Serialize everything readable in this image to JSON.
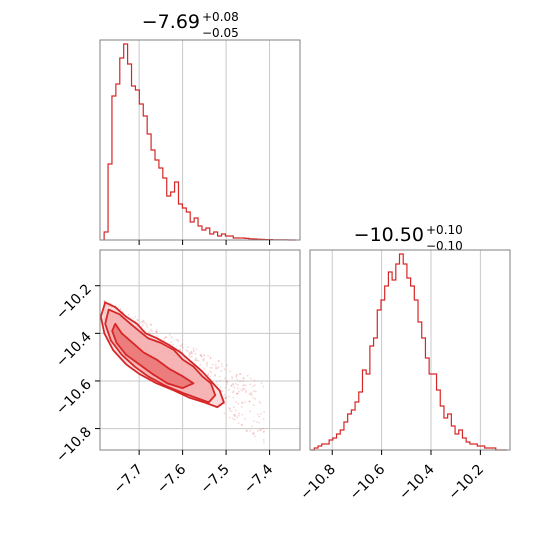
{
  "colors": {
    "series": "#d62728",
    "grid": "#c8c8c8",
    "frame": "#808080"
  },
  "chart_data": [
    {
      "type": "histogram",
      "panel": "top-left",
      "title": {
        "main": "−7.69",
        "upper": "+0.08",
        "lower": "−0.05"
      },
      "xlim": [
        -7.79,
        -7.33
      ],
      "xticks": [
        -7.7,
        -7.6,
        -7.5,
        -7.4
      ],
      "ylim": [
        0,
        1.0
      ],
      "grid": true,
      "bins": [
        {
          "x": -7.776,
          "v": 0.04
        },
        {
          "x": -7.767,
          "v": 0.38
        },
        {
          "x": -7.758,
          "v": 0.72
        },
        {
          "x": -7.749,
          "v": 0.78
        },
        {
          "x": -7.74,
          "v": 0.91
        },
        {
          "x": -7.731,
          "v": 0.98
        },
        {
          "x": -7.722,
          "v": 0.88
        },
        {
          "x": -7.713,
          "v": 0.77
        },
        {
          "x": -7.704,
          "v": 0.75
        },
        {
          "x": -7.695,
          "v": 0.68
        },
        {
          "x": -7.686,
          "v": 0.62
        },
        {
          "x": -7.677,
          "v": 0.53
        },
        {
          "x": -7.668,
          "v": 0.45
        },
        {
          "x": -7.659,
          "v": 0.4
        },
        {
          "x": -7.65,
          "v": 0.36
        },
        {
          "x": -7.641,
          "v": 0.31
        },
        {
          "x": -7.632,
          "v": 0.22
        },
        {
          "x": -7.623,
          "v": 0.24
        },
        {
          "x": -7.614,
          "v": 0.29
        },
        {
          "x": -7.605,
          "v": 0.18
        },
        {
          "x": -7.596,
          "v": 0.16
        },
        {
          "x": -7.587,
          "v": 0.14
        },
        {
          "x": -7.578,
          "v": 0.09
        },
        {
          "x": -7.569,
          "v": 0.11
        },
        {
          "x": -7.56,
          "v": 0.07
        },
        {
          "x": -7.551,
          "v": 0.05
        },
        {
          "x": -7.542,
          "v": 0.06
        },
        {
          "x": -7.533,
          "v": 0.03
        },
        {
          "x": -7.524,
          "v": 0.04
        },
        {
          "x": -7.515,
          "v": 0.02
        },
        {
          "x": -7.506,
          "v": 0.03
        },
        {
          "x": -7.497,
          "v": 0.02
        },
        {
          "x": -7.488,
          "v": 0.02
        },
        {
          "x": -7.479,
          "v": 0.01
        },
        {
          "x": -7.47,
          "v": 0.01
        },
        {
          "x": -7.461,
          "v": 0.01
        },
        {
          "x": -7.452,
          "v": 0.008
        },
        {
          "x": -7.443,
          "v": 0.006
        },
        {
          "x": -7.434,
          "v": 0.005
        },
        {
          "x": -7.425,
          "v": 0.004
        },
        {
          "x": -7.416,
          "v": 0.003
        },
        {
          "x": -7.407,
          "v": 0.002
        },
        {
          "x": -7.398,
          "v": 0.002
        },
        {
          "x": -7.389,
          "v": 0.001
        },
        {
          "x": -7.38,
          "v": 0.001
        },
        {
          "x": -7.371,
          "v": 0.001
        },
        {
          "x": -7.362,
          "v": 0.001
        },
        {
          "x": -7.353,
          "v": 0.0
        },
        {
          "x": -7.344,
          "v": 0.0
        }
      ]
    },
    {
      "type": "scatter",
      "panel": "bottom-left",
      "subtype": "2d-density-contour",
      "xlim": [
        -7.79,
        -7.33
      ],
      "ylim": [
        -10.89,
        -10.05
      ],
      "xticks": [
        -7.7,
        -7.6,
        -7.5,
        -7.4
      ],
      "yticks": [
        -10.2,
        -10.4,
        -10.6,
        -10.8
      ],
      "grid": true,
      "contours": [
        [
          [
            -7.755,
            -10.36
          ],
          [
            -7.74,
            -10.4
          ],
          [
            -7.715,
            -10.44
          ],
          [
            -7.69,
            -10.48
          ],
          [
            -7.66,
            -10.51
          ],
          [
            -7.63,
            -10.55
          ],
          [
            -7.6,
            -10.58
          ],
          [
            -7.575,
            -10.61
          ],
          [
            -7.6,
            -10.63
          ],
          [
            -7.635,
            -10.61
          ],
          [
            -7.67,
            -10.57
          ],
          [
            -7.7,
            -10.53
          ],
          [
            -7.73,
            -10.49
          ],
          [
            -7.752,
            -10.44
          ],
          [
            -7.762,
            -10.39
          ]
        ],
        [
          [
            -7.77,
            -10.3
          ],
          [
            -7.745,
            -10.32
          ],
          [
            -7.72,
            -10.36
          ],
          [
            -7.7,
            -10.39
          ],
          [
            -7.68,
            -10.42
          ],
          [
            -7.65,
            -10.44
          ],
          [
            -7.62,
            -10.47
          ],
          [
            -7.6,
            -10.51
          ],
          [
            -7.575,
            -10.54
          ],
          [
            -7.555,
            -10.58
          ],
          [
            -7.535,
            -10.61
          ],
          [
            -7.525,
            -10.66
          ],
          [
            -7.54,
            -10.69
          ],
          [
            -7.57,
            -10.67
          ],
          [
            -7.6,
            -10.65
          ],
          [
            -7.64,
            -10.62
          ],
          [
            -7.68,
            -10.58
          ],
          [
            -7.71,
            -10.54
          ],
          [
            -7.74,
            -10.49
          ],
          [
            -7.765,
            -10.43
          ],
          [
            -7.778,
            -10.36
          ]
        ],
        [
          [
            -7.778,
            -10.27
          ],
          [
            -7.755,
            -10.29
          ],
          [
            -7.73,
            -10.33
          ],
          [
            -7.705,
            -10.36
          ],
          [
            -7.685,
            -10.4
          ],
          [
            -7.66,
            -10.42
          ],
          [
            -7.63,
            -10.45
          ],
          [
            -7.605,
            -10.48
          ],
          [
            -7.58,
            -10.52
          ],
          [
            -7.555,
            -10.56
          ],
          [
            -7.535,
            -10.6
          ],
          [
            -7.515,
            -10.64
          ],
          [
            -7.505,
            -10.69
          ],
          [
            -7.52,
            -10.71
          ],
          [
            -7.55,
            -10.69
          ],
          [
            -7.585,
            -10.67
          ],
          [
            -7.62,
            -10.64
          ],
          [
            -7.66,
            -10.61
          ],
          [
            -7.7,
            -10.57
          ],
          [
            -7.73,
            -10.53
          ],
          [
            -7.76,
            -10.47
          ],
          [
            -7.78,
            -10.4
          ],
          [
            -7.788,
            -10.33
          ]
        ]
      ],
      "point_density_range": {
        "x": [
          -7.79,
          -7.4
        ],
        "y": [
          -10.8,
          -10.05
        ]
      }
    },
    {
      "type": "histogram",
      "panel": "bottom-right",
      "title": {
        "main": "−10.50",
        "upper": "+0.10",
        "lower": "−0.10"
      },
      "xlim": [
        -10.89,
        -10.08
      ],
      "xticks": [
        -10.8,
        -10.6,
        -10.4,
        -10.2
      ],
      "ylim": [
        0,
        1.0
      ],
      "grid": true,
      "bins": [
        {
          "x": -10.88,
          "v": 0.0
        },
        {
          "x": -10.865,
          "v": 0.01
        },
        {
          "x": -10.85,
          "v": 0.02
        },
        {
          "x": -10.835,
          "v": 0.03
        },
        {
          "x": -10.82,
          "v": 0.03
        },
        {
          "x": -10.805,
          "v": 0.05
        },
        {
          "x": -10.79,
          "v": 0.06
        },
        {
          "x": -10.775,
          "v": 0.08
        },
        {
          "x": -10.76,
          "v": 0.1
        },
        {
          "x": -10.745,
          "v": 0.14
        },
        {
          "x": -10.73,
          "v": 0.18
        },
        {
          "x": -10.715,
          "v": 0.2
        },
        {
          "x": -10.7,
          "v": 0.24
        },
        {
          "x": -10.685,
          "v": 0.29
        },
        {
          "x": -10.67,
          "v": 0.4
        },
        {
          "x": -10.655,
          "v": 0.38
        },
        {
          "x": -10.64,
          "v": 0.52
        },
        {
          "x": -10.625,
          "v": 0.56
        },
        {
          "x": -10.61,
          "v": 0.7
        },
        {
          "x": -10.595,
          "v": 0.75
        },
        {
          "x": -10.58,
          "v": 0.82
        },
        {
          "x": -10.565,
          "v": 0.89
        },
        {
          "x": -10.55,
          "v": 0.85
        },
        {
          "x": -10.535,
          "v": 0.93
        },
        {
          "x": -10.52,
          "v": 0.98
        },
        {
          "x": -10.505,
          "v": 0.93
        },
        {
          "x": -10.49,
          "v": 0.86
        },
        {
          "x": -10.475,
          "v": 0.82
        },
        {
          "x": -10.46,
          "v": 0.75
        },
        {
          "x": -10.445,
          "v": 0.64
        },
        {
          "x": -10.43,
          "v": 0.56
        },
        {
          "x": -10.415,
          "v": 0.46
        },
        {
          "x": -10.4,
          "v": 0.38
        },
        {
          "x": -10.385,
          "v": 0.38
        },
        {
          "x": -10.37,
          "v": 0.3
        },
        {
          "x": -10.355,
          "v": 0.22
        },
        {
          "x": -10.34,
          "v": 0.16
        },
        {
          "x": -10.325,
          "v": 0.18
        },
        {
          "x": -10.31,
          "v": 0.12
        },
        {
          "x": -10.295,
          "v": 0.08
        },
        {
          "x": -10.28,
          "v": 0.1
        },
        {
          "x": -10.265,
          "v": 0.06
        },
        {
          "x": -10.25,
          "v": 0.04
        },
        {
          "x": -10.235,
          "v": 0.03
        },
        {
          "x": -10.22,
          "v": 0.03
        },
        {
          "x": -10.205,
          "v": 0.02
        },
        {
          "x": -10.19,
          "v": 0.02
        },
        {
          "x": -10.175,
          "v": 0.01
        },
        {
          "x": -10.16,
          "v": 0.01
        },
        {
          "x": -10.145,
          "v": 0.01
        },
        {
          "x": -10.13,
          "v": 0.0
        },
        {
          "x": -10.115,
          "v": 0.0
        },
        {
          "x": -10.1,
          "v": 0.0
        }
      ]
    }
  ]
}
